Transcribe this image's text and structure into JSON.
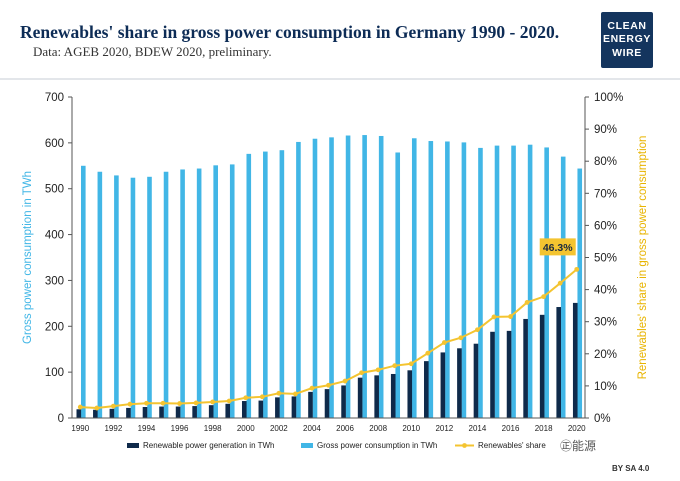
{
  "header": {
    "title": "Renewables' share in gross power consumption in Germany 1990 - 2020.",
    "subtitle": "Data: AGEB 2020, BDEW 2020, preliminary.",
    "logo_lines": [
      "CLEAN",
      "ENERGY",
      "WIRE"
    ]
  },
  "footer": {
    "watermark": "㊣能源",
    "license": "BY SA 4.0"
  },
  "colors": {
    "renewable_bar": "#0f2a4a",
    "gross_bar": "#41b6e6",
    "share_line": "#f4c430",
    "left_axis_label": "#41b6e6",
    "right_axis_label": "#e8b400",
    "title": "#0d2c56"
  },
  "chart_data": {
    "type": "bar",
    "categories": [
      "1990",
      "1991",
      "1992",
      "1993",
      "1994",
      "1995",
      "1996",
      "1997",
      "1998",
      "1999",
      "2000",
      "2001",
      "2002",
      "2003",
      "2004",
      "2005",
      "2006",
      "2007",
      "2008",
      "2009",
      "2010",
      "2011",
      "2012",
      "2013",
      "2014",
      "2015",
      "2016",
      "2017",
      "2018",
      "2019",
      "2020"
    ],
    "x_tick_labels": [
      "1990",
      "1992",
      "1994",
      "1996",
      "1998",
      "2000",
      "2002",
      "2004",
      "2006",
      "2008",
      "2010",
      "2012",
      "2014",
      "2016",
      "2018",
      "2020"
    ],
    "ylabel": "Gross power consumption in TWh",
    "ylim": [
      0,
      700
    ],
    "yticks": [
      0,
      100,
      200,
      300,
      400,
      500,
      600,
      700
    ],
    "y2label": "Renewables' share in gross power consumption",
    "y2lim": [
      0,
      100
    ],
    "y2ticks": [
      "0%",
      "10%",
      "20%",
      "30%",
      "40%",
      "50%",
      "60%",
      "70%",
      "80%",
      "90%",
      "100%"
    ],
    "grid": false,
    "legend_placement": "bottom",
    "series": [
      {
        "name": "Renewable power generation in TWh",
        "type": "bar",
        "values": [
          19,
          18,
          20,
          22,
          24,
          25,
          25,
          26,
          28,
          31,
          37,
          38,
          45,
          47,
          57,
          63,
          71,
          88,
          93,
          96,
          104,
          124,
          143,
          152,
          162,
          188,
          190,
          216,
          225,
          242,
          251
        ]
      },
      {
        "name": "Gross power consumption in TWh",
        "type": "bar",
        "values": [
          550,
          537,
          529,
          524,
          526,
          537,
          542,
          544,
          551,
          553,
          576,
          581,
          584,
          602,
          609,
          612,
          616,
          617,
          615,
          579,
          610,
          604,
          603,
          601,
          589,
          594,
          594,
          596,
          590,
          570,
          544
        ]
      },
      {
        "name": "Renewables' share",
        "type": "line",
        "values": [
          3.4,
          3.1,
          3.7,
          4.3,
          4.6,
          4.6,
          4.5,
          4.7,
          5.0,
          5.3,
          6.3,
          6.6,
          7.7,
          7.5,
          9.3,
          10.2,
          11.5,
          14.1,
          15.0,
          16.3,
          16.9,
          20.2,
          23.5,
          25.0,
          27.5,
          31.5,
          31.6,
          36.0,
          37.8,
          42.0,
          46.3
        ]
      }
    ],
    "annotation": "46.3%"
  }
}
